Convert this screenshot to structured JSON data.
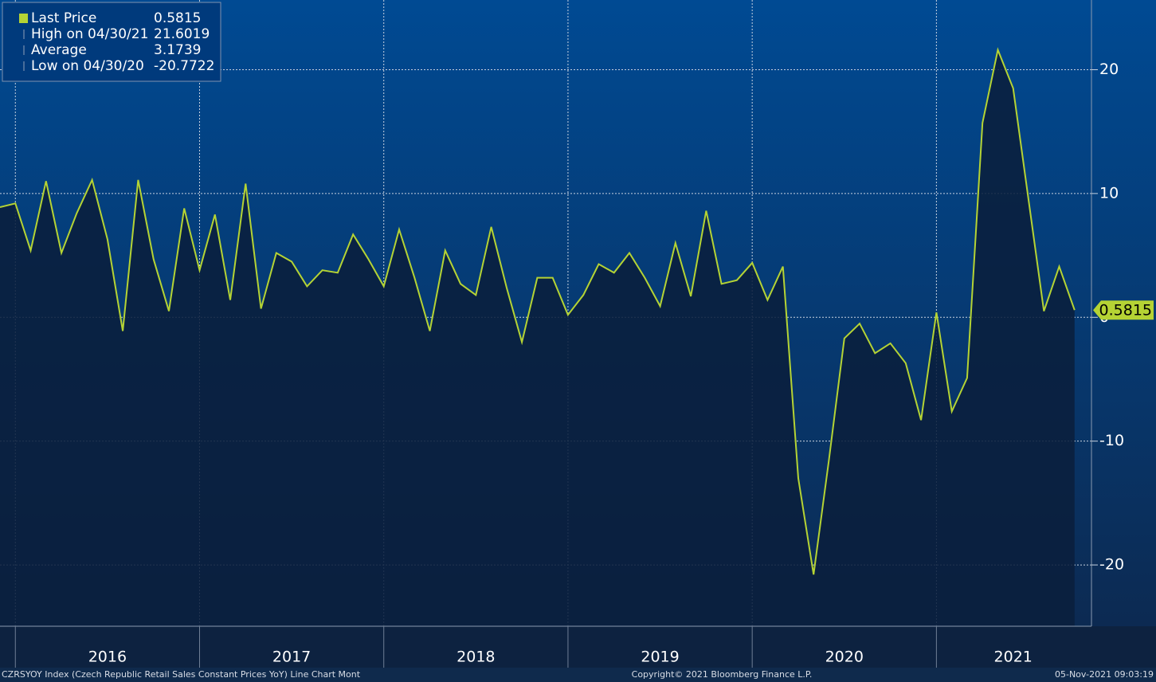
{
  "chart_data": {
    "type": "area",
    "title": "CZRSYOY Index (Czech Republic Retail Sales Constant Prices YoY) Line Chart  Mont",
    "copyright": "Copyright© 2021 Bloomberg Finance L.P.",
    "timestamp": "05-Nov-2021 09:03:19",
    "legend": [
      {
        "name": "Last Price",
        "value": 0.5815
      },
      {
        "name": "High on 04/30/21",
        "value": 21.6019
      },
      {
        "name": "Average",
        "value": 3.1739
      },
      {
        "name": "Low on 04/30/20",
        "value": -20.7722
      }
    ],
    "color": "#b5d334",
    "values": [
      8.9,
      9.2,
      5.4,
      11.0,
      5.2,
      8.4,
      11.1,
      6.3,
      -1.1,
      11.1,
      4.7,
      0.5,
      8.8,
      3.8,
      8.3,
      1.4,
      10.8,
      0.7,
      5.2,
      4.5,
      2.5,
      3.8,
      3.6,
      6.7,
      4.7,
      2.5,
      7.1,
      3.2,
      -1.1,
      5.4,
      2.7,
      1.8,
      7.3,
      2.4,
      -2.0,
      3.2,
      3.2,
      0.2,
      1.8,
      4.3,
      3.6,
      5.2,
      3.2,
      0.9,
      6.0,
      1.7,
      8.6,
      2.7,
      3.0,
      4.4,
      1.4,
      4.1,
      -13.0,
      -20.7722,
      -11.5,
      -1.7,
      -0.5,
      -2.9,
      -2.1,
      -3.7,
      -8.3,
      0.4,
      -7.6,
      -4.9,
      15.7,
      21.6019,
      18.5,
      9.5,
      0.5,
      4.1,
      0.5815
    ],
    "xlim": [
      0,
      71.1
    ],
    "xticks": [
      1,
      13,
      25,
      37,
      49,
      61
    ],
    "xlabels": [
      {
        "value": 7,
        "label": "2016"
      },
      {
        "value": 19,
        "label": "2017"
      },
      {
        "value": 31,
        "label": "2018"
      },
      {
        "value": 43,
        "label": "2019"
      },
      {
        "value": 55,
        "label": "2020"
      },
      {
        "value": 66,
        "label": "2021"
      }
    ],
    "ylim": [
      -24.95,
      25.63
    ],
    "yticks": [
      20,
      10,
      0,
      -10,
      -20
    ],
    "grid": true
  }
}
